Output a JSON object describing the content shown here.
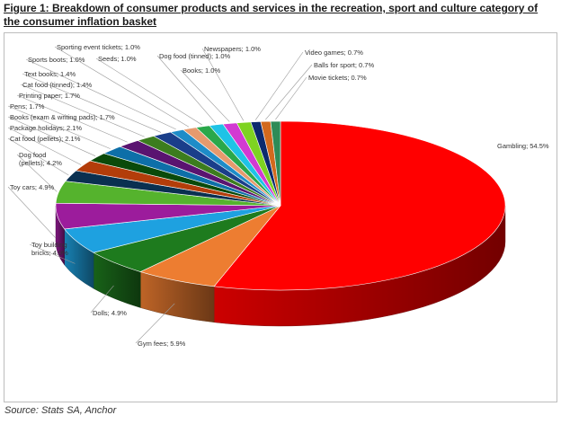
{
  "figure": {
    "title": "Figure 1: Breakdown of consumer products and services in the recreation, sport and culture category of the consumer inflation basket",
    "source": "Source: Stats SA, Anchor"
  },
  "chart_data": {
    "type": "pie",
    "style": "3d",
    "title": "",
    "legend": "none",
    "slices": [
      {
        "label": "Gambling; 54.5%",
        "value": 54.5,
        "color": "#ff0000"
      },
      {
        "label": "Gym fees; 5.9%",
        "value": 5.9,
        "color": "#ed7d31"
      },
      {
        "label": "Dolls; 4.9%",
        "value": 4.9,
        "color": "#1e7b1e"
      },
      {
        "label": "Toy building bricks; 4.9%",
        "value": 4.9,
        "color": "#1ea1e0"
      },
      {
        "label": "Toy cars; 4.9%",
        "value": 4.9,
        "color": "#9c1c9c"
      },
      {
        "label": "Dog food (pellets); 4.2%",
        "value": 4.2,
        "color": "#55b32d"
      },
      {
        "label": "Cat food (pellets); 2.1%",
        "value": 2.1,
        "color": "#0a3050"
      },
      {
        "label": "Package holidays; 2.1%",
        "value": 2.1,
        "color": "#b33d0a"
      },
      {
        "label": "Books (exam & writing pads); 1.7%",
        "value": 1.7,
        "color": "#0a4a0a"
      },
      {
        "label": "Pens; 1.7%",
        "value": 1.7,
        "color": "#0e6fa8"
      },
      {
        "label": "Printing paper; 1.7%",
        "value": 1.7,
        "color": "#5a1470"
      },
      {
        "label": "Cat food (tinned); 1.4%",
        "value": 1.4,
        "color": "#3c7d1e"
      },
      {
        "label": "Text books; 1.4%",
        "value": 1.4,
        "color": "#1a3e8a"
      },
      {
        "label": "Sports boots; 1.0%",
        "value": 1.0,
        "color": "#1e8cc8"
      },
      {
        "label": "Sporting event tickets; 1.0%",
        "value": 1.0,
        "color": "#e69a6e"
      },
      {
        "label": "Seeds; 1.0%",
        "value": 1.0,
        "color": "#2aa84a"
      },
      {
        "label": "Dog food (tinned); 1.0%",
        "value": 1.0,
        "color": "#1ec3e6"
      },
      {
        "label": "Books; 1.0%",
        "value": 1.0,
        "color": "#d23ad2"
      },
      {
        "label": "Newspapers; 1.0%",
        "value": 1.0,
        "color": "#7ed321"
      },
      {
        "label": "Video games; 0.7%",
        "value": 0.7,
        "color": "#0b2a6e"
      },
      {
        "label": "Balls for sport; 0.7%",
        "value": 0.7,
        "color": "#d2691e"
      },
      {
        "label": "Movie tickets; 0.7%",
        "value": 0.7,
        "color": "#2e8b57"
      }
    ]
  }
}
